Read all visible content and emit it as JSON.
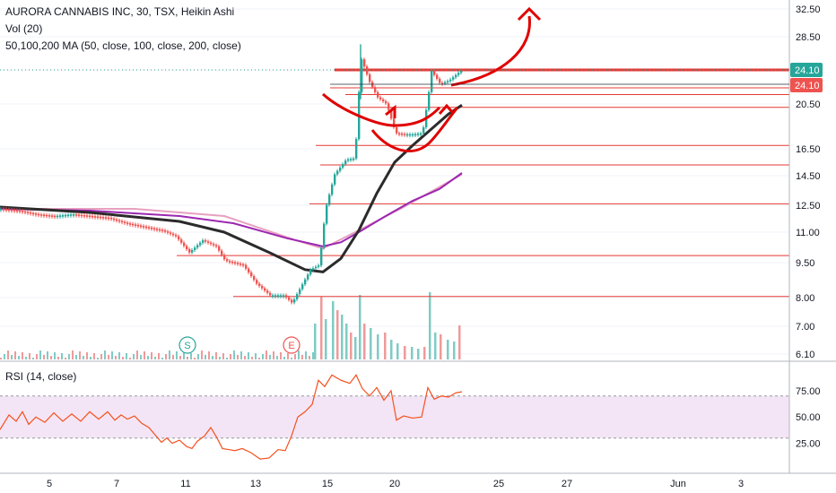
{
  "legend": {
    "symbol": "AURORA CANNABIS INC, 30, TSX, Heikin Ashi",
    "volume": "Vol (20)",
    "ma": "50,100,200 MA (50, close, 100, close, 200, close)",
    "rsi": "RSI (14, close)"
  },
  "colors": {
    "up": "#26a69a",
    "down": "#ef5350",
    "ma_dark": "#2b2b2b",
    "ma_purple": "#9c27b0",
    "ma_pink": "#e8a0c0",
    "rsi_line": "#f4511e",
    "rsi_band": "#f3e5f5",
    "hline": "#e53935",
    "arrow": "#e00000",
    "price_badge": "#26a69a",
    "price_badge2": "#ef5350"
  },
  "chart_data": [
    {
      "type": "candlestick",
      "symbol": "AURORA CANNABIS INC, 30, TSX, Heikin Ashi",
      "price_axis": [
        "32.50",
        "28.50",
        "24.10",
        "20.50",
        "16.50",
        "14.50",
        "12.50",
        "11.00",
        "9.50",
        "8.00",
        "7.00",
        "6.10"
      ],
      "last_price": "24.10",
      "last_price_2": "24.10",
      "x_ticks": [
        "5",
        "7",
        "11",
        "13",
        "15",
        "20",
        "25",
        "27",
        "Jun",
        "3"
      ],
      "close_path": [
        [
          0,
          12.3
        ],
        [
          20,
          12.2
        ],
        [
          40,
          12.0
        ],
        [
          60,
          11.9
        ],
        [
          80,
          12.0
        ],
        [
          100,
          11.9
        ],
        [
          120,
          11.8
        ],
        [
          140,
          11.5
        ],
        [
          160,
          11.3
        ],
        [
          180,
          11.1
        ],
        [
          195,
          10.8
        ],
        [
          210,
          10.0
        ],
        [
          225,
          10.6
        ],
        [
          240,
          10.3
        ],
        [
          250,
          9.6
        ],
        [
          270,
          9.4
        ],
        [
          285,
          8.6
        ],
        [
          300,
          8.1
        ],
        [
          315,
          8.1
        ],
        [
          325,
          7.8
        ],
        [
          335,
          8.5
        ],
        [
          345,
          9.2
        ],
        [
          355,
          9.4
        ],
        [
          362,
          12.3
        ],
        [
          372,
          14.6
        ],
        [
          385,
          15.7
        ],
        [
          395,
          15.8
        ],
        [
          398,
          20.5
        ],
        [
          402,
          25.5
        ],
        [
          410,
          23.0
        ],
        [
          420,
          21.2
        ],
        [
          430,
          20.5
        ],
        [
          440,
          17.9
        ],
        [
          450,
          17.8
        ],
        [
          460,
          17.8
        ],
        [
          470,
          17.9
        ],
        [
          476,
          21.0
        ],
        [
          480,
          24.0
        ],
        [
          490,
          22.6
        ],
        [
          500,
          23.0
        ],
        [
          510,
          23.8
        ],
        [
          515,
          24.1
        ]
      ],
      "moving_averages": [
        {
          "name": "MA 50",
          "color": "#2b2b2b",
          "points": [
            [
              0,
              12.4
            ],
            [
              100,
              12.1
            ],
            [
              200,
              11.6
            ],
            [
              250,
              11.0
            ],
            [
              300,
              10.0
            ],
            [
              340,
              9.2
            ],
            [
              360,
              9.1
            ],
            [
              380,
              9.7
            ],
            [
              400,
              11.1
            ],
            [
              420,
              13.3
            ],
            [
              440,
              15.5
            ],
            [
              460,
              16.8
            ],
            [
              480,
              18.2
            ],
            [
              500,
              19.6
            ],
            [
              515,
              20.4
            ]
          ]
        },
        {
          "name": "MA 100",
          "color": "#9c27b0",
          "points": [
            [
              0,
              12.3
            ],
            [
              100,
              12.2
            ],
            [
              200,
              11.9
            ],
            [
              260,
              11.5
            ],
            [
              320,
              10.7
            ],
            [
              360,
              10.3
            ],
            [
              380,
              10.5
            ],
            [
              400,
              11.0
            ],
            [
              430,
              11.9
            ],
            [
              460,
              12.8
            ],
            [
              490,
              13.6
            ],
            [
              515,
              14.7
            ]
          ]
        },
        {
          "name": "MA 200",
          "color": "#e8a0c0",
          "points": [
            [
              0,
              12.3
            ],
            [
              150,
              12.3
            ],
            [
              250,
              11.9
            ],
            [
              330,
              10.6
            ],
            [
              360,
              10.2
            ],
            [
              400,
              11.1
            ],
            [
              450,
              12.4
            ],
            [
              515,
              14.6
            ]
          ]
        }
      ],
      "horizontal_levels": [
        {
          "value": 24.1,
          "x_start": 373,
          "width": 3
        },
        {
          "value": 22.2,
          "x_start": 368,
          "width": 1
        },
        {
          "value": 21.5,
          "x_start": 385,
          "width": 1
        },
        {
          "value": 20.2,
          "x_start": 390,
          "width": 1
        },
        {
          "value": 16.8,
          "x_start": 352,
          "width": 1
        },
        {
          "value": 15.3,
          "x_start": 357,
          "width": 1
        },
        {
          "value": 12.6,
          "x_start": 345,
          "width": 1
        },
        {
          "value": 9.85,
          "x_start": 197,
          "width": 1
        },
        {
          "value": 8.05,
          "x_start": 260,
          "width": 1
        }
      ],
      "volume": [
        [
          350,
          40
        ],
        [
          357,
          70
        ],
        [
          362,
          45
        ],
        [
          370,
          65
        ],
        [
          375,
          55
        ],
        [
          380,
          50
        ],
        [
          385,
          40
        ],
        [
          390,
          30
        ],
        [
          395,
          25
        ],
        [
          400,
          72
        ],
        [
          405,
          40
        ],
        [
          412,
          35
        ],
        [
          420,
          28
        ],
        [
          428,
          30
        ],
        [
          435,
          22
        ],
        [
          442,
          18
        ],
        [
          450,
          15
        ],
        [
          458,
          14
        ],
        [
          465,
          12
        ],
        [
          472,
          14
        ],
        [
          478,
          75
        ],
        [
          484,
          30
        ],
        [
          490,
          28
        ],
        [
          498,
          22
        ],
        [
          505,
          20
        ],
        [
          511,
          38
        ]
      ],
      "events": [
        {
          "label": "S",
          "x": 209
        },
        {
          "label": "E",
          "x": 325
        }
      ]
    },
    {
      "type": "line",
      "title": "RSI (14, close)",
      "y_ticks": [
        "75.00",
        "50.00",
        "25.00"
      ],
      "band": [
        30,
        70
      ],
      "values": [
        [
          0,
          38
        ],
        [
          10,
          52
        ],
        [
          18,
          46
        ],
        [
          25,
          55
        ],
        [
          32,
          43
        ],
        [
          40,
          50
        ],
        [
          50,
          45
        ],
        [
          60,
          54
        ],
        [
          70,
          46
        ],
        [
          80,
          53
        ],
        [
          90,
          46
        ],
        [
          100,
          55
        ],
        [
          110,
          48
        ],
        [
          120,
          55
        ],
        [
          128,
          47
        ],
        [
          135,
          52
        ],
        [
          142,
          48
        ],
        [
          150,
          51
        ],
        [
          158,
          44
        ],
        [
          166,
          40
        ],
        [
          174,
          32
        ],
        [
          180,
          26
        ],
        [
          186,
          30
        ],
        [
          192,
          25
        ],
        [
          200,
          28
        ],
        [
          208,
          22
        ],
        [
          214,
          20
        ],
        [
          220,
          27
        ],
        [
          228,
          32
        ],
        [
          235,
          40
        ],
        [
          242,
          30
        ],
        [
          248,
          20
        ],
        [
          255,
          19
        ],
        [
          262,
          18
        ],
        [
          270,
          20
        ],
        [
          280,
          16
        ],
        [
          290,
          10
        ],
        [
          300,
          11
        ],
        [
          310,
          19
        ],
        [
          318,
          18
        ],
        [
          325,
          32
        ],
        [
          332,
          50
        ],
        [
          340,
          55
        ],
        [
          348,
          62
        ],
        [
          355,
          85
        ],
        [
          362,
          79
        ],
        [
          370,
          90
        ],
        [
          380,
          85
        ],
        [
          390,
          82
        ],
        [
          397,
          90
        ],
        [
          404,
          77
        ],
        [
          412,
          70
        ],
        [
          420,
          78
        ],
        [
          428,
          66
        ],
        [
          436,
          75
        ],
        [
          442,
          47
        ],
        [
          450,
          51
        ],
        [
          460,
          49
        ],
        [
          470,
          50
        ],
        [
          477,
          78
        ],
        [
          484,
          67
        ],
        [
          492,
          70
        ],
        [
          500,
          69
        ],
        [
          508,
          73
        ],
        [
          515,
          74
        ]
      ]
    }
  ]
}
